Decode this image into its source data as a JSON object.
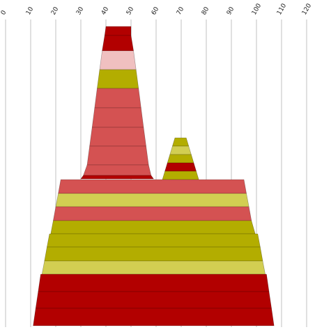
{
  "chart_data": {
    "type": "area",
    "orientation": "vertical-profile",
    "x_axis": {
      "position": "top",
      "ticks": [
        0,
        10,
        20,
        30,
        40,
        50,
        60,
        70,
        80,
        90,
        100,
        110,
        120
      ],
      "range": [
        0,
        120
      ],
      "grid": true
    },
    "colors": {
      "dark_red": "#b20000",
      "medium_red": "#d45252",
      "pink": "#f0c0c0",
      "olive": "#b3ad00",
      "light_olive": "#d2ce52"
    },
    "groups": [
      {
        "layers": [
          {
            "color": "dark_red",
            "left": [
              40,
              39.5
            ],
            "right": [
              50,
              50
            ]
          },
          {
            "color": "dark_red",
            "left": [
              39.5,
              38.5
            ],
            "right": [
              50,
              51
            ]
          },
          {
            "color": "pink",
            "left": [
              38.5,
              37.5
            ],
            "right": [
              51,
              52
            ]
          },
          {
            "color": "olive",
            "left": [
              37.5,
              36.5
            ],
            "right": [
              52,
              53
            ]
          },
          {
            "color": "medium_red",
            "left": [
              36.5,
              35.5
            ],
            "right": [
              53,
              54
            ]
          },
          {
            "color": "medium_red",
            "left": [
              35.5,
              34.5
            ],
            "right": [
              54,
              55
            ]
          },
          {
            "color": "medium_red",
            "left": [
              34.5,
              33.5
            ],
            "right": [
              55,
              56
            ]
          },
          {
            "color": "medium_red",
            "left": [
              33.5,
              32.5
            ],
            "right": [
              56,
              57
            ]
          },
          {
            "color": "medium_red",
            "left": [
              32.5,
              31
            ],
            "right": [
              57,
              58
            ]
          },
          {
            "color": "dark_red",
            "left": [
              31,
              30
            ],
            "right": [
              58,
              59
            ]
          }
        ]
      },
      {
        "layers": [
          {
            "color": "olive",
            "left": [
              67.5,
              66.5
            ],
            "right": [
              72,
              73
            ]
          },
          {
            "color": "light_olive",
            "left": [
              66.5,
              65.5
            ],
            "right": [
              73,
              74
            ]
          },
          {
            "color": "olive",
            "left": [
              65.5,
              64.5
            ],
            "right": [
              74,
              75
            ]
          },
          {
            "color": "dark_red",
            "left": [
              64.5,
              63.5
            ],
            "right": [
              75,
              76
            ]
          },
          {
            "color": "olive",
            "left": [
              63.5,
              62.5
            ],
            "right": [
              76,
              77
            ]
          }
        ]
      },
      {
        "layers": [
          {
            "color": "medium_red",
            "left": [
              22,
              21
            ],
            "right": [
              95,
              96
            ]
          },
          {
            "color": "light_olive",
            "left": [
              21,
              20
            ],
            "right": [
              96,
              97
            ]
          },
          {
            "color": "medium_red",
            "left": [
              20,
              19
            ],
            "right": [
              97,
              98
            ]
          },
          {
            "color": "olive",
            "left": [
              19,
              18
            ],
            "right": [
              98,
              99.5
            ]
          },
          {
            "color": "olive",
            "left": [
              17.5,
              16.5
            ],
            "right": [
              100.5,
              101.5
            ]
          },
          {
            "color": "olive",
            "left": [
              16.5,
              15.5
            ],
            "right": [
              101.5,
              102.5
            ]
          },
          {
            "color": "light_olive",
            "left": [
              15.5,
              14.5
            ],
            "right": [
              102.5,
              103.5
            ]
          },
          {
            "color": "dark_red",
            "left": [
              14,
              13
            ],
            "right": [
              104,
              105
            ]
          },
          {
            "color": "dark_red",
            "left": [
              13,
              12
            ],
            "right": [
              105,
              106
            ]
          },
          {
            "color": "dark_red",
            "left": [
              12,
              11
            ],
            "right": [
              106,
              107
            ]
          }
        ]
      }
    ]
  }
}
